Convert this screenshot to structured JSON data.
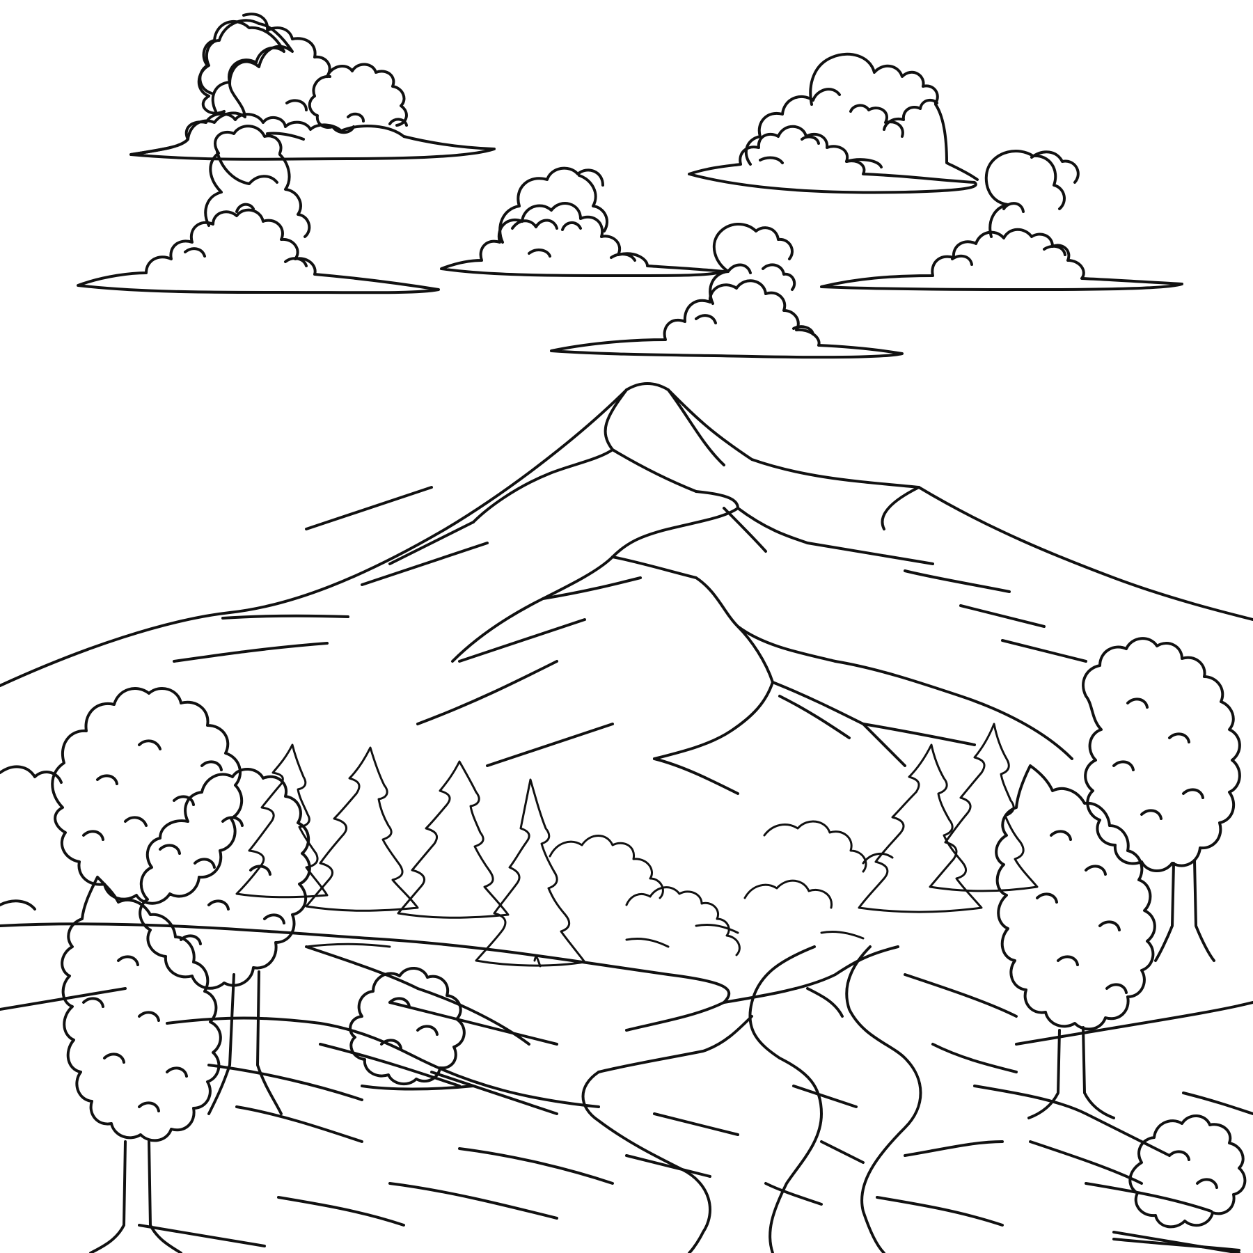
{
  "colors": {
    "background": "#ffffff",
    "ink": "#111111"
  },
  "scene": {
    "subject": "",
    "elements": [
      "clouds",
      "mountain",
      "pine-trees",
      "deciduous-trees",
      "bushes",
      "winding-river",
      "meadow"
    ]
  }
}
